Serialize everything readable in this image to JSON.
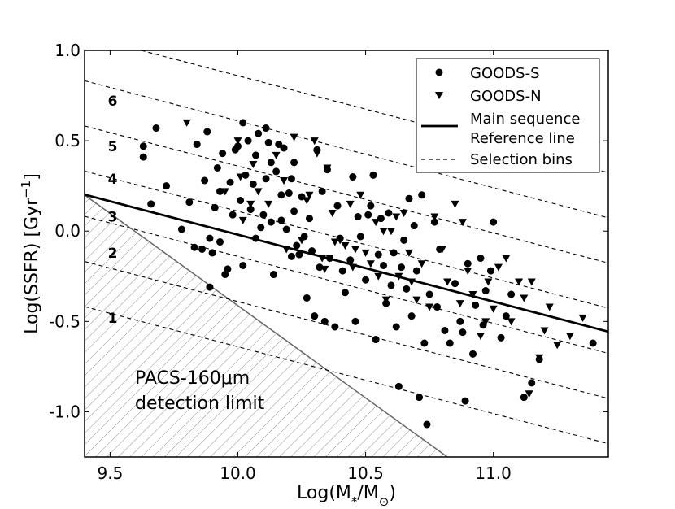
{
  "chart_data": {
    "type": "scatter",
    "xlabel": "Log(M*/M⊙)",
    "ylabel": "Log(SSFR) [Gyr⁻¹]",
    "xlim": [
      9.4,
      11.45
    ],
    "ylim": [
      -1.25,
      1.0
    ],
    "xticks": [
      9.5,
      10.0,
      10.5,
      11.0
    ],
    "xtick_labels": [
      "9.5",
      "10.0",
      "10.5",
      "11.0"
    ],
    "yticks": [
      1.0,
      0.5,
      0.0,
      -0.5,
      -1.0
    ],
    "ytick_labels": [
      "1.0",
      "0.5",
      "0.0",
      "-0.5",
      "-1.0"
    ],
    "main_sequence": {
      "label": "Main sequence\nReference line",
      "slope": -0.37,
      "intercept": 3.68
    },
    "selection_bins": {
      "label": "Selection bins",
      "slope": -0.37,
      "intercepts": [
        3.06,
        3.31,
        3.56,
        3.81,
        4.06,
        4.31,
        4.56
      ]
    },
    "bin_labels": [
      {
        "text": "1",
        "x": 9.51,
        "y": -0.48
      },
      {
        "text": "2",
        "x": 9.51,
        "y": -0.12
      },
      {
        "text": "3",
        "x": 9.51,
        "y": 0.08
      },
      {
        "text": "4",
        "x": 9.51,
        "y": 0.29
      },
      {
        "text": "5",
        "x": 9.51,
        "y": 0.47
      },
      {
        "text": "6",
        "x": 9.51,
        "y": 0.72
      }
    ],
    "detection_limit": {
      "label_line1": "PACS-160μm",
      "label_line2": "detection limit",
      "x0": 9.4,
      "y0": 0.2,
      "x1": 10.82,
      "y1": -1.25
    },
    "series": [
      {
        "name": "GOODS-S",
        "marker": "circle",
        "points": [
          [
            9.63,
            0.47
          ],
          [
            9.63,
            0.41
          ],
          [
            9.66,
            0.15
          ],
          [
            9.68,
            0.57
          ],
          [
            9.72,
            0.25
          ],
          [
            9.78,
            0.01
          ],
          [
            9.81,
            0.16
          ],
          [
            9.83,
            -0.09
          ],
          [
            9.84,
            0.48
          ],
          [
            9.86,
            -0.1
          ],
          [
            9.87,
            0.28
          ],
          [
            9.88,
            0.55
          ],
          [
            9.89,
            -0.04
          ],
          [
            9.89,
            -0.31
          ],
          [
            9.9,
            -0.12
          ],
          [
            9.91,
            0.13
          ],
          [
            9.92,
            0.35
          ],
          [
            9.93,
            0.22
          ],
          [
            9.93,
            -0.06
          ],
          [
            9.94,
            0.43
          ],
          [
            9.95,
            -0.24
          ],
          [
            9.96,
            -0.21
          ],
          [
            9.97,
            0.27
          ],
          [
            9.98,
            0.09
          ],
          [
            9.99,
            0.45
          ],
          [
            10.0,
            0.47
          ],
          [
            10.01,
            0.17
          ],
          [
            10.02,
            -0.19
          ],
          [
            10.02,
            0.6
          ],
          [
            10.03,
            0.31
          ],
          [
            10.04,
            0.5
          ],
          [
            10.05,
            0.12
          ],
          [
            10.06,
            0.26
          ],
          [
            10.07,
            -0.04
          ],
          [
            10.07,
            0.42
          ],
          [
            10.08,
            0.54
          ],
          [
            10.09,
            0.02
          ],
          [
            10.1,
            0.09
          ],
          [
            10.11,
            0.29
          ],
          [
            10.11,
            0.57
          ],
          [
            10.12,
            0.49
          ],
          [
            10.13,
            0.05
          ],
          [
            10.13,
            0.38
          ],
          [
            10.14,
            -0.24
          ],
          [
            10.15,
            0.33
          ],
          [
            10.16,
            0.48
          ],
          [
            10.17,
            0.2
          ],
          [
            10.17,
            0.06
          ],
          [
            10.18,
            0.46
          ],
          [
            10.19,
            0.01
          ],
          [
            10.2,
            0.21
          ],
          [
            10.21,
            0.29
          ],
          [
            10.21,
            -0.14
          ],
          [
            10.22,
            0.11
          ],
          [
            10.22,
            0.38
          ],
          [
            10.23,
            -0.08
          ],
          [
            10.24,
            -0.13
          ],
          [
            10.25,
            0.19
          ],
          [
            10.26,
            -0.03
          ],
          [
            10.27,
            -0.37
          ],
          [
            10.28,
            0.07
          ],
          [
            10.29,
            -0.11
          ],
          [
            10.3,
            -0.47
          ],
          [
            10.31,
            0.45
          ],
          [
            10.32,
            -0.2
          ],
          [
            10.33,
            0.22
          ],
          [
            10.34,
            -0.5
          ],
          [
            10.35,
            0.34
          ],
          [
            10.36,
            -0.15
          ],
          [
            10.38,
            -0.53
          ],
          [
            10.39,
            0.14
          ],
          [
            10.4,
            -0.04
          ],
          [
            10.41,
            -0.22
          ],
          [
            10.42,
            -0.34
          ],
          [
            10.44,
            -0.16
          ],
          [
            10.45,
            0.3
          ],
          [
            10.46,
            -0.5
          ],
          [
            10.47,
            0.08
          ],
          [
            10.48,
            -0.03
          ],
          [
            10.5,
            -0.27
          ],
          [
            10.51,
            0.09
          ],
          [
            10.52,
            0.14
          ],
          [
            10.53,
            0.31
          ],
          [
            10.54,
            -0.6
          ],
          [
            10.55,
            -0.13
          ],
          [
            10.56,
            0.07
          ],
          [
            10.57,
            -0.19
          ],
          [
            10.58,
            -0.4
          ],
          [
            10.59,
            0.1
          ],
          [
            10.6,
            -0.3
          ],
          [
            10.61,
            -0.12
          ],
          [
            10.62,
            -0.53
          ],
          [
            10.63,
            -0.86
          ],
          [
            10.64,
            -0.2
          ],
          [
            10.65,
            -0.05
          ],
          [
            10.66,
            -0.32
          ],
          [
            10.67,
            0.18
          ],
          [
            10.68,
            -0.47
          ],
          [
            10.69,
            0.03
          ],
          [
            10.7,
            -0.22
          ],
          [
            10.71,
            -0.92
          ],
          [
            10.72,
            0.2
          ],
          [
            10.73,
            -0.62
          ],
          [
            10.74,
            -1.07
          ],
          [
            10.75,
            -0.35
          ],
          [
            10.77,
            0.05
          ],
          [
            10.78,
            -0.42
          ],
          [
            10.79,
            -0.1
          ],
          [
            10.81,
            -0.55
          ],
          [
            10.83,
            -0.62
          ],
          [
            10.85,
            -0.29
          ],
          [
            10.87,
            -0.5
          ],
          [
            10.88,
            -0.56
          ],
          [
            10.89,
            -0.94
          ],
          [
            10.9,
            -0.18
          ],
          [
            10.92,
            -0.68
          ],
          [
            10.93,
            -0.41
          ],
          [
            10.95,
            -0.15
          ],
          [
            10.96,
            -0.52
          ],
          [
            10.97,
            -0.33
          ],
          [
            10.99,
            -0.22
          ],
          [
            11.0,
            0.05
          ],
          [
            11.03,
            -0.59
          ],
          [
            11.05,
            -0.47
          ],
          [
            11.07,
            -0.35
          ],
          [
            11.12,
            -0.92
          ],
          [
            11.15,
            -0.84
          ],
          [
            11.18,
            -0.71
          ],
          [
            11.39,
            -0.62
          ]
        ]
      },
      {
        "name": "GOODS-N",
        "marker": "triangle-down",
        "points": [
          [
            9.8,
            0.6
          ],
          [
            9.95,
            0.22
          ],
          [
            10.0,
            0.5
          ],
          [
            10.01,
            0.3
          ],
          [
            10.02,
            0.06
          ],
          [
            10.05,
            0.15
          ],
          [
            10.06,
            0.37
          ],
          [
            10.08,
            0.22
          ],
          [
            10.12,
            0.15
          ],
          [
            10.15,
            0.42
          ],
          [
            10.18,
            0.28
          ],
          [
            10.19,
            -0.1
          ],
          [
            10.22,
            0.52
          ],
          [
            10.25,
            -0.05
          ],
          [
            10.27,
            0.17
          ],
          [
            10.28,
            0.2
          ],
          [
            10.3,
            0.5
          ],
          [
            10.31,
            0.43
          ],
          [
            10.33,
            -0.15
          ],
          [
            10.34,
            -0.21
          ],
          [
            10.35,
            0.35
          ],
          [
            10.36,
            -0.15
          ],
          [
            10.37,
            0.1
          ],
          [
            10.38,
            -0.06
          ],
          [
            10.4,
            -0.05
          ],
          [
            10.42,
            -0.08
          ],
          [
            10.44,
            0.15
          ],
          [
            10.45,
            -0.2
          ],
          [
            10.46,
            -0.1
          ],
          [
            10.48,
            0.2
          ],
          [
            10.5,
            -0.12
          ],
          [
            10.52,
            -0.18
          ],
          [
            10.54,
            0.05
          ],
          [
            10.55,
            -0.25
          ],
          [
            10.57,
            0.0
          ],
          [
            10.58,
            -0.38
          ],
          [
            10.6,
            0.0
          ],
          [
            10.62,
            0.08
          ],
          [
            10.63,
            -0.25
          ],
          [
            10.65,
            0.1
          ],
          [
            10.67,
            -0.12
          ],
          [
            10.68,
            -0.28
          ],
          [
            10.7,
            -0.38
          ],
          [
            10.72,
            -0.18
          ],
          [
            10.75,
            -0.42
          ],
          [
            10.77,
            0.08
          ],
          [
            10.8,
            -0.1
          ],
          [
            10.82,
            -0.28
          ],
          [
            10.85,
            0.15
          ],
          [
            10.87,
            -0.4
          ],
          [
            10.88,
            0.05
          ],
          [
            10.9,
            -0.22
          ],
          [
            10.92,
            -0.35
          ],
          [
            10.95,
            -0.58
          ],
          [
            10.97,
            -0.5
          ],
          [
            10.98,
            -0.28
          ],
          [
            11.0,
            -0.43
          ],
          [
            11.02,
            -0.2
          ],
          [
            11.05,
            -0.15
          ],
          [
            11.07,
            -0.5
          ],
          [
            11.1,
            -0.28
          ],
          [
            11.12,
            -0.37
          ],
          [
            11.15,
            -0.28
          ],
          [
            11.18,
            -0.7
          ],
          [
            11.2,
            -0.55
          ],
          [
            11.22,
            -0.42
          ],
          [
            11.25,
            -0.63
          ],
          [
            11.3,
            -0.58
          ],
          [
            11.35,
            -0.48
          ],
          [
            11.14,
            -0.9
          ]
        ]
      }
    ]
  },
  "legend": {
    "goods_s": "GOODS-S",
    "goods_n": "GOODS-N",
    "main_line1": "Main sequence",
    "main_line2": "Reference line",
    "bins": "Selection bins"
  }
}
